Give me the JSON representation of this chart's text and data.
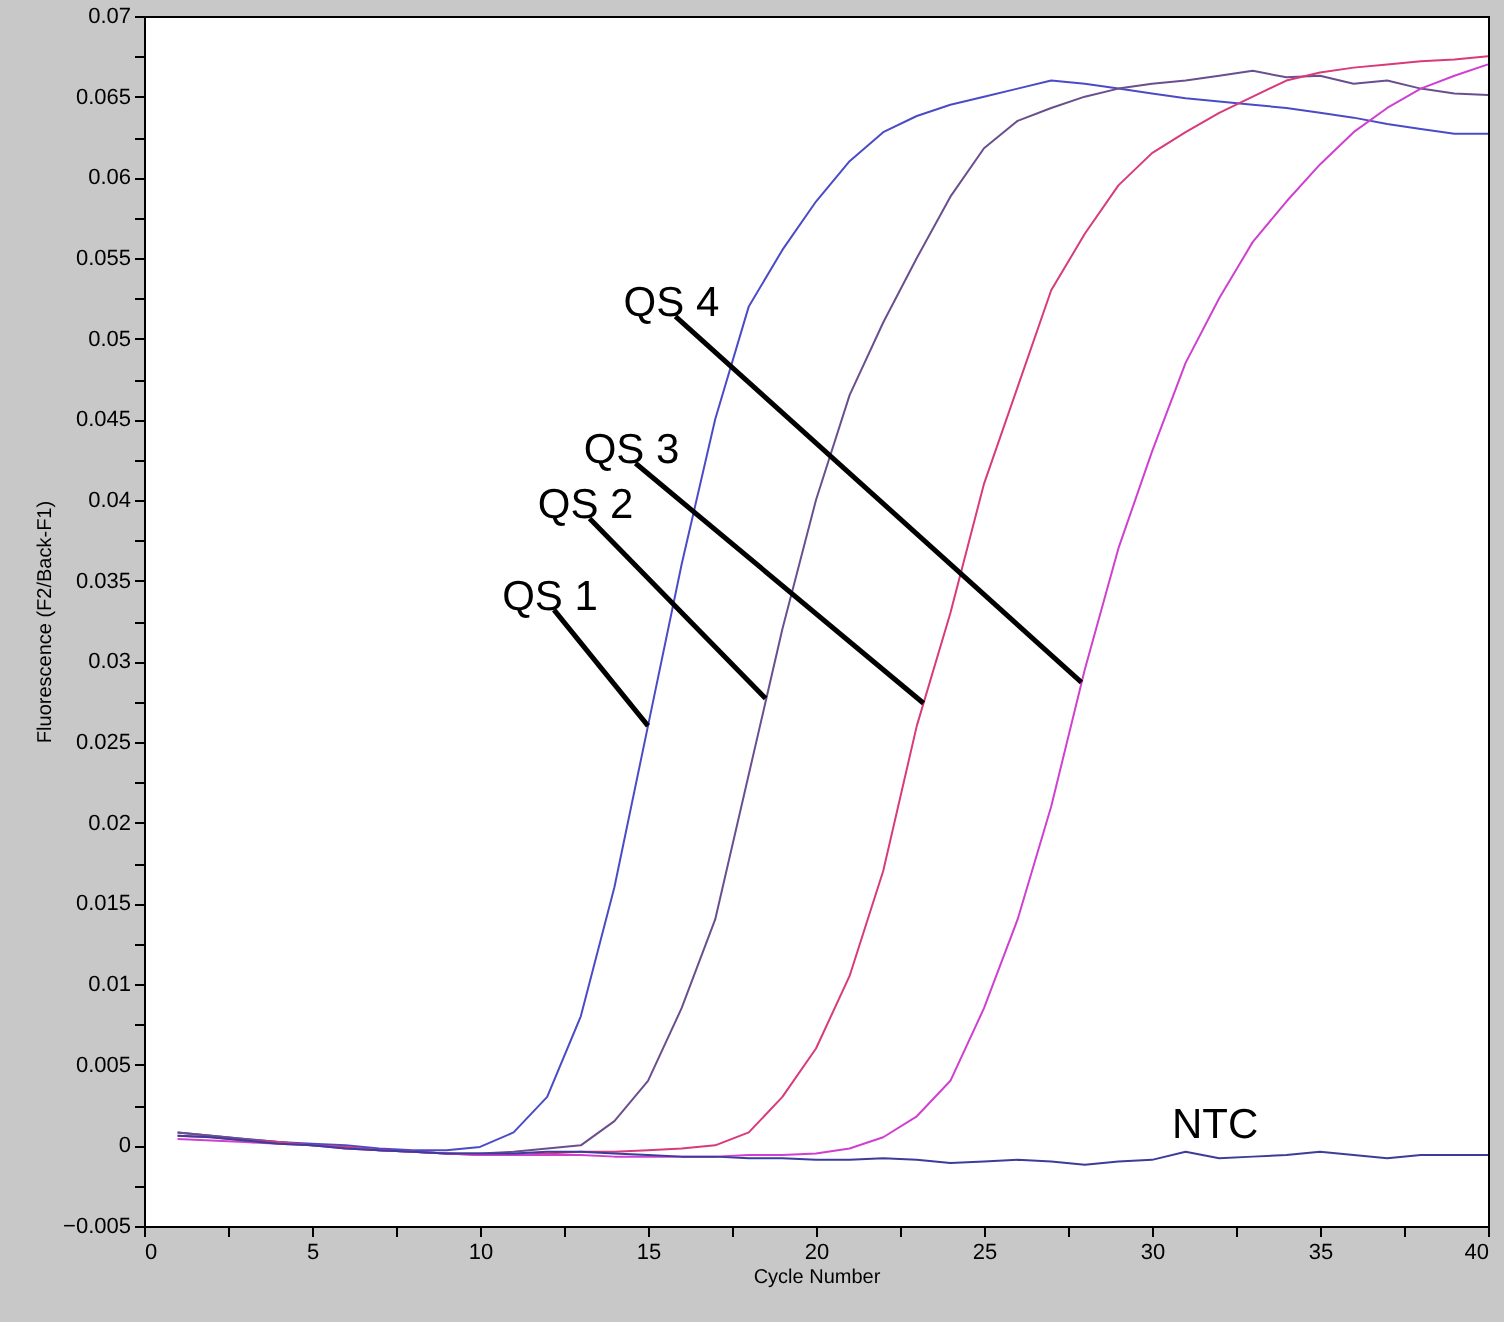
{
  "chart_data": {
    "type": "line",
    "xlabel": "Cycle Number",
    "ylabel": "Fluorescence (F2/Back-F1)",
    "x": [
      1,
      2,
      3,
      4,
      5,
      6,
      7,
      8,
      9,
      10,
      11,
      12,
      13,
      14,
      15,
      16,
      17,
      18,
      19,
      20,
      21,
      22,
      23,
      24,
      25,
      26,
      27,
      28,
      29,
      30,
      31,
      32,
      33,
      34,
      35,
      36,
      37,
      38,
      39,
      40
    ],
    "series": [
      {
        "color": "#4b4bc8",
        "values": [
          0.0008,
          0.0006,
          0.0004,
          0.0002,
          0.0001,
          0,
          -0.0002,
          -0.0003,
          -0.0003,
          -0.0001,
          0.0008,
          0.003,
          0.008,
          0.016,
          0.026,
          0.036,
          0.045,
          0.052,
          0.0555,
          0.0585,
          0.061,
          0.0628,
          0.0638,
          0.0645,
          0.065,
          0.0655,
          0.066,
          0.0658,
          0.0655,
          0.0652,
          0.0649,
          0.0647,
          0.0645,
          0.0643,
          0.064,
          0.0637,
          0.0633,
          0.063,
          0.0627,
          0.0627
        ]
      },
      {
        "color": "#6a4f8f",
        "values": [
          0.0008,
          0.0006,
          0.0004,
          0.0002,
          0,
          -0.0001,
          -0.0003,
          -0.0004,
          -0.0005,
          -0.0005,
          -0.0004,
          -0.0002,
          0,
          0.0015,
          0.004,
          0.0085,
          0.014,
          0.023,
          0.032,
          0.04,
          0.0465,
          0.051,
          0.055,
          0.0588,
          0.0618,
          0.0635,
          0.0643,
          0.065,
          0.0655,
          0.0658,
          0.066,
          0.0663,
          0.0666,
          0.0662,
          0.0663,
          0.0658,
          0.066,
          0.0655,
          0.0652,
          0.0651
        ]
      },
      {
        "color": "#d83a7a",
        "values": [
          0.0006,
          0.0005,
          0.0003,
          0.0002,
          0,
          -0.0001,
          -0.0003,
          -0.0004,
          -0.0005,
          -0.0006,
          -0.0006,
          -0.0005,
          -0.0004,
          -0.0004,
          -0.0003,
          -0.0002,
          0,
          0.0008,
          0.003,
          0.006,
          0.0105,
          0.017,
          0.026,
          0.033,
          0.041,
          0.047,
          0.053,
          0.0565,
          0.0595,
          0.0615,
          0.0628,
          0.064,
          0.065,
          0.066,
          0.0665,
          0.0668,
          0.067,
          0.0672,
          0.0673,
          0.0675
        ]
      },
      {
        "color": "#d040d0",
        "values": [
          0.0004,
          0.0003,
          0.0002,
          0.0001,
          0,
          -0.0002,
          -0.0003,
          -0.0004,
          -0.0005,
          -0.0006,
          -0.0006,
          -0.0006,
          -0.0006,
          -0.0007,
          -0.0007,
          -0.0007,
          -0.0007,
          -0.0006,
          -0.0006,
          -0.0005,
          -0.0002,
          0.0005,
          0.0018,
          0.004,
          0.0085,
          0.014,
          0.021,
          0.0295,
          0.037,
          0.043,
          0.0485,
          0.0525,
          0.056,
          0.0585,
          0.0608,
          0.0628,
          0.0643,
          0.0655,
          0.0663,
          0.067
        ]
      },
      {
        "color": "#3c3c9c",
        "values": [
          0.0006,
          0.0005,
          0.0003,
          0.0001,
          0,
          -0.0002,
          -0.0003,
          -0.0004,
          -0.0005,
          -0.0005,
          -0.0005,
          -0.0004,
          -0.0004,
          -0.0005,
          -0.0006,
          -0.0007,
          -0.0007,
          -0.0008,
          -0.0008,
          -0.0009,
          -0.0009,
          -0.0008,
          -0.0009,
          -0.0011,
          -0.001,
          -0.0009,
          -0.001,
          -0.0012,
          -0.001,
          -0.0009,
          -0.0004,
          -0.0008,
          -0.0007,
          -0.0006,
          -0.0004,
          -0.0006,
          -0.0008,
          -0.0006,
          -0.0006,
          -0.0006
        ]
      }
    ],
    "annotations": [
      {
        "text": "QS 1",
        "x": 15,
        "y": 0.026
      },
      {
        "text": "QS 2",
        "x": 18.5,
        "y": 0.0277
      },
      {
        "text": "QS 3",
        "x": 23.2,
        "y": 0.0274
      },
      {
        "text": "QS 4",
        "x": 27.9,
        "y": 0.0287
      },
      {
        "text": "NTC",
        "x": 32,
        "y": -0.0008
      }
    ],
    "xlim": [
      0,
      40
    ],
    "xticks": [
      0,
      {
        "value": 2.5,
        "label": null
      },
      5,
      {
        "value": 7.5,
        "label": null
      },
      10,
      {
        "value": 12.5,
        "label": null
      },
      15,
      {
        "value": 17.5,
        "label": null
      },
      20,
      {
        "value": 22.5,
        "label": null
      },
      25,
      {
        "value": 27.5,
        "label": null
      },
      30,
      {
        "value": 32.5,
        "label": null
      },
      35,
      {
        "value": 37.5,
        "label": null
      },
      40
    ],
    "ylim": [
      -0.005,
      0.07
    ],
    "yticks": [
      -0.005,
      {
        "value": -0.0025,
        "label": null
      },
      0,
      {
        "value": 0.0025,
        "label": null
      },
      0.005,
      {
        "value": 0.0075,
        "label": null
      },
      0.01,
      {
        "value": 0.0125,
        "label": null
      },
      0.015,
      {
        "value": 0.0175,
        "label": null
      },
      0.02,
      {
        "value": 0.0225,
        "label": null
      },
      0.025,
      {
        "value": 0.0275,
        "label": null
      },
      0.03,
      {
        "value": 0.0325,
        "label": null
      },
      0.035,
      {
        "value": 0.0375,
        "label": null
      },
      0.04,
      {
        "value": 0.0425,
        "label": null
      },
      0.045,
      {
        "value": 0.0475,
        "label": null
      },
      0.05,
      {
        "value": 0.0525,
        "label": null
      },
      0.055,
      {
        "value": 0.0575,
        "label": null
      },
      0.06,
      {
        "value": 0.0625,
        "label": null
      },
      0.065,
      {
        "value": 0.0675,
        "label": null
      },
      0.07
    ],
    "grid": false,
    "marker": "none",
    "line_style": "solid"
  }
}
